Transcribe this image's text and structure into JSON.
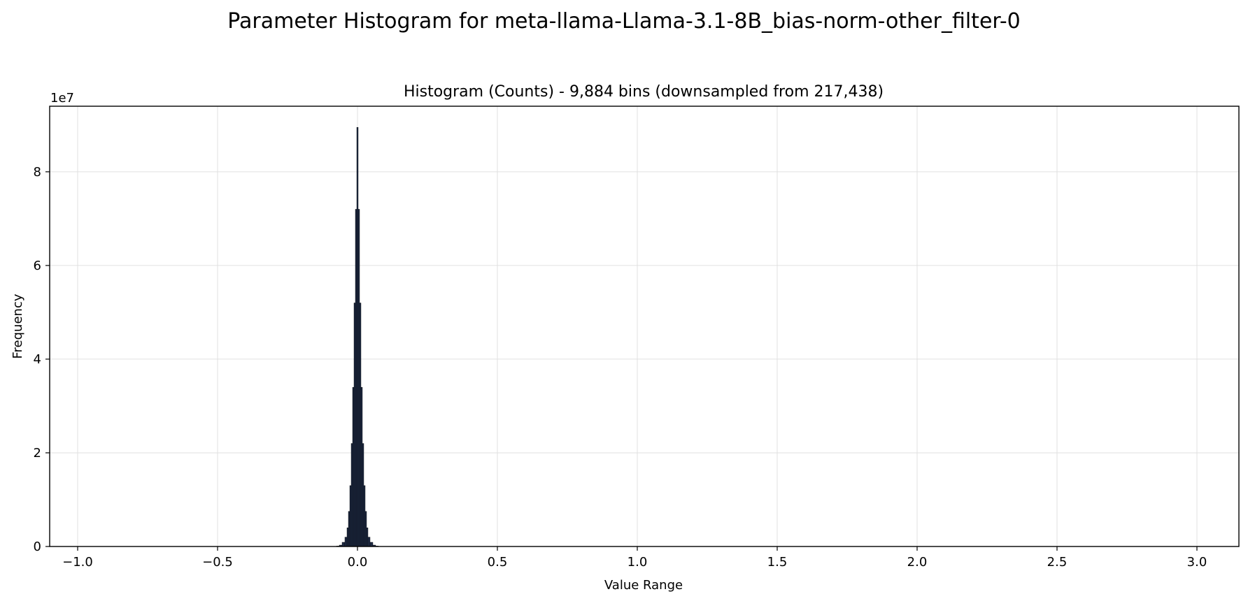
{
  "chart_data": {
    "type": "bar",
    "title": "Parameter Histogram for meta-llama-Llama-3.1-8B_bias-norm-other_filter-0",
    "subtitle": "Histogram (Counts) - 9,884 bins (downsampled from 217,438)",
    "xlabel": "Value Range",
    "ylabel": "Frequency",
    "y_offset_label": "1e7",
    "xlim": [
      -1.1,
      3.15
    ],
    "ylim": [
      0,
      94000000
    ],
    "x_ticks": [
      -1.0,
      -0.5,
      0.0,
      0.5,
      1.0,
      1.5,
      2.0,
      2.5,
      3.0
    ],
    "x_tick_labels": [
      "−1.0",
      "−0.5",
      "0.0",
      "0.5",
      "1.0",
      "1.5",
      "2.0",
      "2.5",
      "3.0"
    ],
    "y_ticks": [
      0,
      20000000,
      40000000,
      60000000,
      80000000
    ],
    "y_tick_labels": [
      "0",
      "2",
      "4",
      "6",
      "8"
    ],
    "grid": true,
    "bar_color": "#1f2a44",
    "edge_color": "#000000",
    "bins": {
      "x": [
        -0.07,
        -0.06,
        -0.05,
        -0.04,
        -0.035,
        -0.03,
        -0.025,
        -0.02,
        -0.015,
        -0.01,
        -0.005,
        0.0,
        0.005,
        0.01,
        0.015,
        0.02,
        0.025,
        0.03,
        0.035,
        0.04,
        0.05,
        0.06,
        0.07
      ],
      "values": [
        100000,
        300000,
        900000,
        2000000,
        4000000,
        7500000,
        13000000,
        22000000,
        34000000,
        52000000,
        72000000,
        89500000,
        72000000,
        52000000,
        34000000,
        22000000,
        13000000,
        7500000,
        4000000,
        2000000,
        900000,
        300000,
        100000
      ]
    }
  }
}
